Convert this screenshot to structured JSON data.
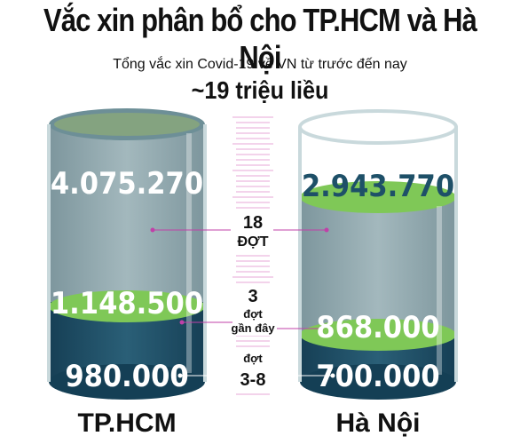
{
  "title": "Vắc xin phân bổ cho TP.HCM và Hà Nội",
  "subtitle": "Tổng vắc xin Covid-19 về VN từ trước đến nay",
  "total": "~19 triệu liều",
  "colors": {
    "glass_edge": "#c9d9dc",
    "liquid_hcm_top": "#6d8f97",
    "liquid_light": "#8fa7ad",
    "liquid_dark": "#1e5068",
    "liquid_deep": "#143f55",
    "green": "#7fc857",
    "connector": "#c040a8"
  },
  "chart_data": {
    "type": "bar",
    "categories": [
      "TP.HCM",
      "Hà Nội"
    ],
    "series": [
      {
        "name": "18 ĐỢT",
        "values": [
          4075270,
          2943770
        ],
        "labels": [
          "4.075.270",
          "2.943.770"
        ]
      },
      {
        "name": "3 đợt gần đây",
        "values": [
          1148500,
          868000
        ],
        "labels": [
          "1.148.500",
          "868.000"
        ]
      },
      {
        "name": "đợt 3-8",
        "values": [
          980000,
          700000
        ],
        "labels": [
          "980.000",
          "700.000"
        ]
      }
    ],
    "middle_labels": [
      {
        "line1": "18",
        "line2": "ĐỢT"
      },
      {
        "line1": "3",
        "line2": "đợt",
        "line3": "gần đây"
      },
      {
        "line1": "đợt",
        "line2": "3-8"
      }
    ]
  }
}
